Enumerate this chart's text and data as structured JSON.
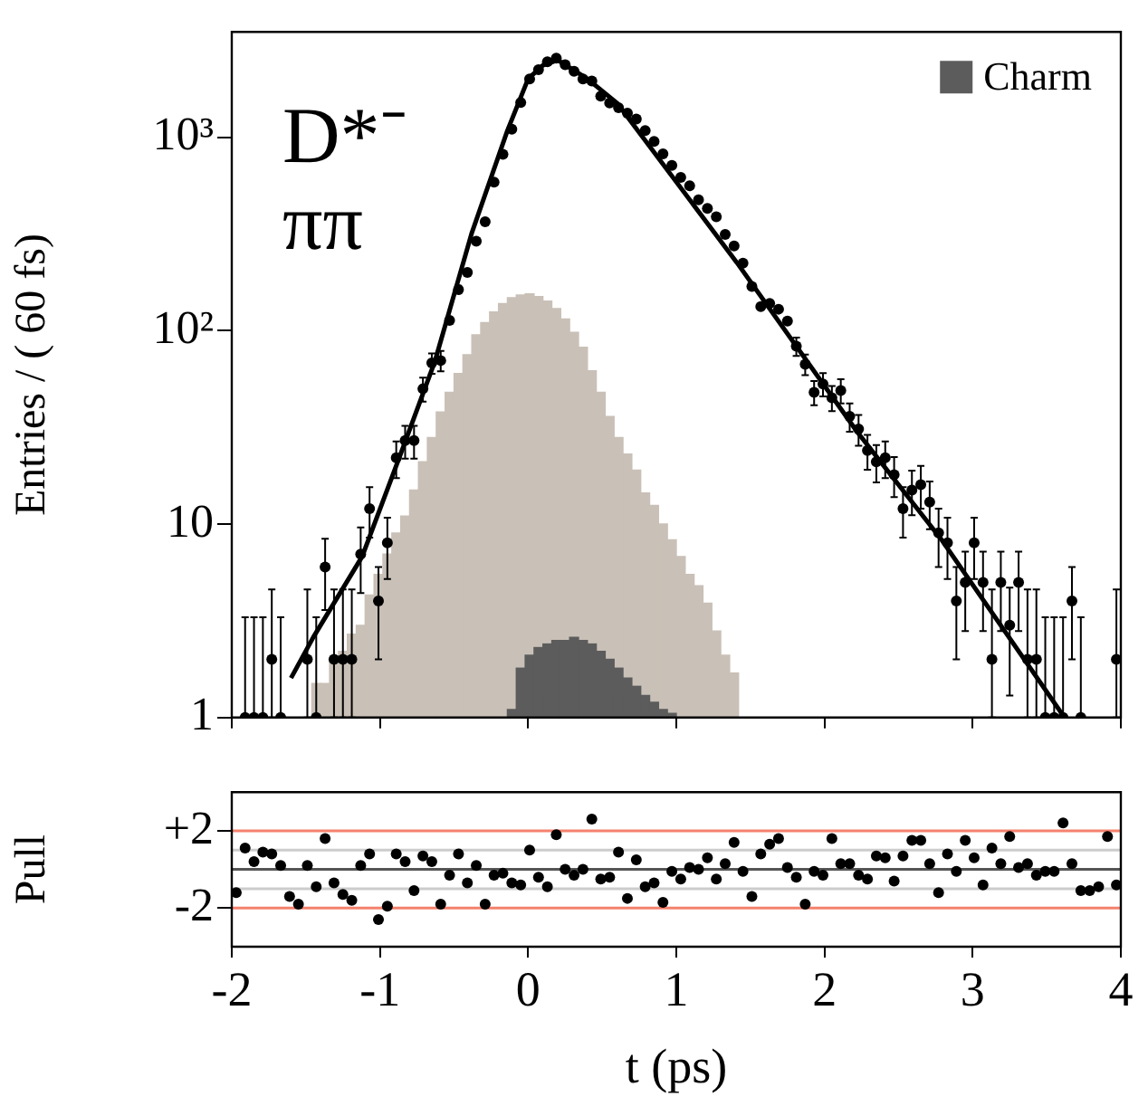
{
  "chart_data": [
    {
      "type": "scatter",
      "xlim": [
        -2,
        4
      ],
      "xticks": [
        -2,
        -1,
        0,
        1,
        2,
        3,
        4
      ],
      "ylim": [
        1,
        3500
      ],
      "yticks": [
        1,
        10,
        {
          "value": 100,
          "label": "10²"
        },
        {
          "value": 1000,
          "label": "10³"
        }
      ],
      "log": "y",
      "ylabel": "Entries / ( 60 fs)",
      "tick_labels": "y",
      "legend": "top right",
      "grid": false,
      "annotations": [
        "D*⁻",
        "ππ"
      ],
      "bins": [
        -2,
        -1.94,
        -1.88,
        -1.82,
        -1.76,
        -1.7,
        -1.64,
        -1.58,
        -1.52,
        -1.46,
        -1.4,
        -1.34,
        -1.28,
        -1.22,
        -1.16,
        -1.1,
        -1.04,
        -0.98,
        -0.92,
        -0.86,
        -0.8,
        -0.74,
        -0.68,
        -0.62,
        -0.56,
        -0.5,
        -0.44,
        -0.38,
        -0.32,
        -0.26,
        -0.2,
        -0.14,
        -0.08,
        -0.02,
        0.04,
        0.1,
        0.16,
        0.22,
        0.28,
        0.34,
        0.4,
        0.46,
        0.52,
        0.58,
        0.64,
        0.7,
        0.76,
        0.82,
        0.88,
        0.94,
        1,
        1.06,
        1.12,
        1.18,
        1.24,
        1.3,
        1.36,
        1.42,
        1.48,
        1.54,
        1.6,
        1.66,
        1.72,
        1.78,
        1.84,
        1.9,
        1.96,
        2.02,
        2.08,
        2.14,
        2.2,
        2.26,
        2.32,
        2.38,
        2.44,
        2.5,
        2.56,
        2.62,
        2.68,
        2.74,
        2.8,
        2.86,
        2.92,
        2.98,
        3.04,
        3.1,
        3.16,
        3.22,
        3.28,
        3.34,
        3.4,
        3.46,
        3.52,
        3.58,
        3.64,
        3.7,
        3.76,
        3.82,
        3.88,
        3.94,
        4
      ],
      "series": [
        {
          "type": "histogram",
          "color": "#c9c0b7",
          "values": [
            null,
            null,
            null,
            null,
            null,
            null,
            null,
            null,
            null,
            1.5,
            1.5,
            2,
            2.2,
            2.7,
            3,
            4.3,
            5.5,
            7,
            9,
            11,
            15,
            21,
            28,
            38,
            48,
            60,
            75,
            95,
            110,
            125,
            138,
            148,
            153,
            155,
            150,
            142,
            130,
            115,
            98,
            82,
            62,
            48,
            36,
            28,
            23,
            19,
            14.5,
            12.5,
            10,
            8.3,
            6.8,
            5.5,
            4.8,
            3.9,
            2.8,
            2.1,
            1.7,
            null,
            null,
            null,
            null,
            null,
            null,
            null,
            null,
            null,
            null,
            null,
            null,
            null,
            null,
            null,
            null,
            null,
            null,
            null,
            null,
            null,
            null,
            null,
            null,
            null,
            null,
            null,
            null,
            null,
            null,
            null,
            null,
            null,
            null,
            null,
            null,
            null,
            null,
            null,
            null,
            null,
            null,
            null
          ]
        },
        {
          "type": "histogram",
          "name": "Charm",
          "color": "#5c5c5c",
          "values": [
            null,
            null,
            null,
            null,
            null,
            null,
            null,
            null,
            null,
            null,
            null,
            null,
            null,
            null,
            null,
            null,
            null,
            null,
            null,
            null,
            null,
            null,
            null,
            null,
            null,
            null,
            null,
            null,
            null,
            null,
            null,
            1.1,
            1.8,
            2.1,
            2.3,
            2.4,
            2.5,
            2.5,
            2.6,
            2.5,
            2.4,
            2.2,
            2,
            1.8,
            1.6,
            1.45,
            1.3,
            1.2,
            1.1,
            1.05,
            null,
            null,
            null,
            null,
            null,
            null,
            null,
            null,
            null,
            null,
            null,
            null,
            null,
            null,
            null,
            null,
            null,
            null,
            null,
            null,
            null,
            null,
            null,
            null,
            null,
            null,
            null,
            null,
            null,
            null,
            null,
            null,
            null,
            null,
            null,
            null,
            null,
            null,
            null,
            null,
            null,
            null,
            null,
            null,
            null,
            null,
            null,
            null,
            null,
            null
          ]
        },
        {
          "type": "line",
          "color": "#000000",
          "marker": "none",
          "x": [
            -1.6,
            -1.45,
            -1.12,
            -0.87,
            -0.63,
            -0.38,
            -0.14,
            0,
            0.1,
            0.2,
            0.4,
            0.6,
            1.41,
            2.22,
            2.79,
            3.62
          ],
          "values": [
            1.6,
            2.6,
            6.8,
            22,
            69,
            320,
            1080,
            2000,
            2350,
            2500,
            2000,
            1500,
            224,
            30,
            8.3,
            1
          ]
        },
        {
          "type": "scatter",
          "color": "#000000",
          "marker": "circle",
          "x": [
            -1.91,
            -1.85,
            -1.79,
            -1.73,
            -1.67,
            -1.49,
            -1.43,
            -1.37,
            -1.31,
            -1.25,
            -1.19,
            -1.13,
            -1.07,
            -1.01,
            -0.95,
            -0.89,
            -0.83,
            -0.77,
            -0.71,
            -0.65,
            -0.59,
            -0.53,
            -0.47,
            -0.41,
            -0.35,
            -0.29,
            -0.23,
            -0.17,
            -0.11,
            -0.05,
            0.01,
            0.07,
            0.13,
            0.19,
            0.25,
            0.31,
            0.37,
            0.43,
            0.49,
            0.55,
            0.61,
            0.67,
            0.73,
            0.79,
            0.85,
            0.91,
            0.97,
            1.03,
            1.09,
            1.15,
            1.21,
            1.27,
            1.33,
            1.39,
            1.45,
            1.51,
            1.57,
            1.63,
            1.69,
            1.75,
            1.81,
            1.87,
            1.93,
            1.99,
            2.05,
            2.11,
            2.17,
            2.23,
            2.29,
            2.35,
            2.41,
            2.47,
            2.53,
            2.59,
            2.65,
            2.71,
            2.77,
            2.83,
            2.89,
            2.95,
            3.01,
            3.07,
            3.13,
            3.19,
            3.25,
            3.31,
            3.37,
            3.43,
            3.49,
            3.55,
            3.61,
            3.67,
            3.73,
            3.97
          ],
          "values": [
            1,
            1,
            1,
            2,
            1,
            2,
            1,
            6,
            2,
            2,
            2,
            7,
            12,
            4,
            8,
            22,
            27,
            27,
            50,
            68,
            70,
            113,
            163,
            200,
            290,
            365,
            585,
            815,
            1100,
            1510,
            2000,
            2230,
            2450,
            2560,
            2370,
            2190,
            2000,
            1950,
            1630,
            1500,
            1420,
            1330,
            1240,
            1080,
            950,
            820,
            715,
            620,
            560,
            474,
            428,
            388,
            314,
            274,
            223,
            169,
            133,
            138,
            129,
            112,
            83,
            67,
            48,
            53,
            45,
            49,
            36,
            31,
            24,
            21,
            22,
            18,
            12,
            15,
            16,
            13,
            9,
            8,
            4,
            5,
            8,
            5,
            2,
            5,
            3,
            5,
            2,
            2,
            1,
            1,
            1,
            4,
            1,
            2
          ],
          "errors": [
            [
              1,
              3.3
            ],
            [
              1,
              3.3
            ],
            [
              1,
              3.3
            ],
            [
              1,
              4.6
            ],
            [
              1,
              3.3
            ],
            [
              1,
              4.6
            ],
            [
              1,
              3.3
            ],
            2.4,
            [
              1,
              4.6
            ],
            [
              1,
              4.6
            ],
            [
              1,
              4.6
            ],
            2.6,
            3.5,
            2,
            2.8,
            4.7,
            5.2,
            5.2,
            7.1,
            8.2,
            8.4,
            null,
            null,
            null,
            null,
            null,
            null,
            null,
            null,
            null,
            null,
            null,
            null,
            null,
            null,
            null,
            null,
            null,
            null,
            null,
            null,
            null,
            null,
            null,
            null,
            null,
            null,
            null,
            null,
            null,
            null,
            null,
            null,
            null,
            null,
            null,
            null,
            null,
            null,
            null,
            9.1,
            8.2,
            6.9,
            7.3,
            6.7,
            7,
            6,
            5.6,
            4.9,
            4.6,
            4.7,
            4.2,
            3.5,
            3.9,
            4,
            3.6,
            3,
            2.8,
            2,
            2.2,
            2.8,
            2.2,
            [
              1,
              4.6
            ],
            2.2,
            1.7,
            2.2,
            [
              1,
              4.6
            ],
            [
              1,
              4.6
            ],
            [
              1,
              3.3
            ],
            [
              1,
              3.3
            ],
            [
              1,
              3.3
            ],
            2,
            [
              1,
              3.3
            ],
            [
              1,
              4.6
            ]
          ]
        }
      ]
    },
    {
      "type": "scatter",
      "xlim": [
        -2,
        4
      ],
      "xticks": [
        -2,
        -1,
        0,
        1,
        2,
        3,
        4
      ],
      "ylim": [
        -4,
        4
      ],
      "yticks": [
        {
          "value": 2,
          "label": "+2"
        },
        -2
      ],
      "xlabel": "t (ps)",
      "ylabel": "Pull",
      "grid": false,
      "ref_lines": [
        {
          "axis": "y",
          "value": 2,
          "color": "#f4816c"
        },
        {
          "axis": "y",
          "value": -2,
          "color": "#f4816c"
        },
        {
          "axis": "y",
          "value": 1,
          "color": "#cccccc"
        },
        {
          "axis": "y",
          "value": -1,
          "color": "#cccccc"
        },
        {
          "axis": "y",
          "value": 0,
          "color": "#555555"
        }
      ],
      "series": [
        {
          "color": "#000000",
          "marker": "circle",
          "x": [
            -1.97,
            -1.91,
            -1.85,
            -1.79,
            -1.73,
            -1.67,
            -1.61,
            -1.55,
            -1.49,
            -1.43,
            -1.37,
            -1.31,
            -1.25,
            -1.19,
            -1.13,
            -1.07,
            -1.01,
            -0.95,
            -0.89,
            -0.83,
            -0.77,
            -0.71,
            -0.65,
            -0.59,
            -0.53,
            -0.47,
            -0.41,
            -0.35,
            -0.29,
            -0.23,
            -0.17,
            -0.11,
            -0.05,
            0.01,
            0.07,
            0.13,
            0.19,
            0.25,
            0.31,
            0.37,
            0.43,
            0.49,
            0.55,
            0.61,
            0.67,
            0.73,
            0.79,
            0.85,
            0.91,
            0.97,
            1.03,
            1.09,
            1.15,
            1.21,
            1.27,
            1.33,
            1.39,
            1.45,
            1.51,
            1.57,
            1.63,
            1.69,
            1.75,
            1.81,
            1.87,
            1.93,
            1.99,
            2.05,
            2.11,
            2.17,
            2.23,
            2.29,
            2.35,
            2.41,
            2.47,
            2.53,
            2.59,
            2.65,
            2.71,
            2.77,
            2.83,
            2.89,
            2.95,
            3.01,
            3.07,
            3.13,
            3.19,
            3.25,
            3.31,
            3.37,
            3.43,
            3.49,
            3.55,
            3.61,
            3.67,
            3.73,
            3.79,
            3.85,
            3.91,
            3.97
          ],
          "values": [
            -1.2,
            1.1,
            0.4,
            0.9,
            0.8,
            0.2,
            -1.4,
            -1.8,
            0.2,
            -0.9,
            1.6,
            -0.7,
            -1.3,
            -1.6,
            0.2,
            0.8,
            -2.6,
            -1.9,
            0.8,
            0.4,
            -1.1,
            0.7,
            0.4,
            -1.8,
            -0.3,
            0.8,
            -0.7,
            0.2,
            -1.8,
            -0.3,
            -0.2,
            -0.7,
            -0.8,
            1.0,
            -0.4,
            -0.9,
            1.8,
            0,
            -0.3,
            0,
            2.6,
            -0.5,
            -0.4,
            0.9,
            -1.5,
            0.5,
            -0.9,
            -0.7,
            -1.7,
            -0.1,
            -0.5,
            0.1,
            0,
            0.6,
            -0.5,
            0.3,
            1.4,
            -0.1,
            -1.4,
            0.8,
            1.3,
            1.6,
            0.1,
            -0.4,
            -1.8,
            -0.1,
            -0.3,
            1.6,
            0.3,
            0.3,
            -0.3,
            -0.5,
            0.7,
            0.6,
            -0.6,
            0.7,
            1.5,
            1.5,
            0.3,
            -1.2,
            0.8,
            -0.1,
            1.5,
            0.6,
            -0.8,
            1.1,
            0.3,
            1.7,
            0.1,
            0.3,
            -0.3,
            -0.1,
            -0.1,
            2.4,
            0.3,
            -1.1,
            -1.1,
            -0.9,
            1.7,
            -0.8
          ]
        }
      ]
    }
  ]
}
